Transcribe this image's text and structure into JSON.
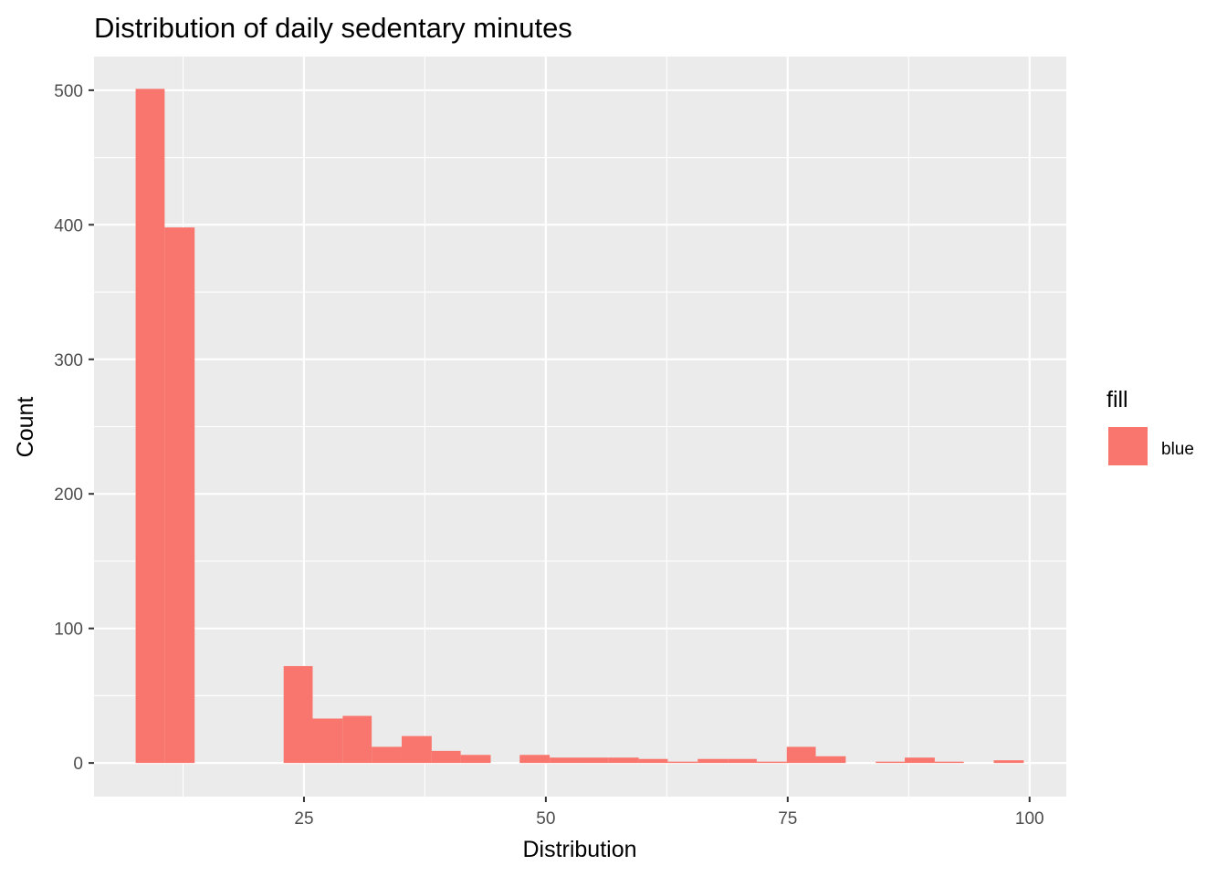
{
  "chart_data": {
    "type": "bar",
    "title": "Distribution of daily sedentary minutes",
    "xlabel": "Distribution",
    "ylabel": "Count",
    "xlim": [
      3.3,
      103.8
    ],
    "ylim": [
      -25,
      525
    ],
    "x_ticks": [
      25,
      50,
      75,
      100
    ],
    "y_ticks": [
      0,
      100,
      200,
      300,
      400,
      500
    ],
    "x_tick_labels": [
      "25",
      "50",
      "75",
      "100"
    ],
    "y_tick_labels": [
      "0",
      "100",
      "200",
      "300",
      "400",
      "500"
    ],
    "grid": true,
    "legend": {
      "title": "fill",
      "position": "right",
      "entries": [
        {
          "label": "blue",
          "color": "#F8766D"
        }
      ]
    },
    "bar_color": "#F8766D",
    "bins": [
      {
        "x0": 7.6,
        "x1": 10.6,
        "count": 501
      },
      {
        "x0": 10.6,
        "x1": 13.7,
        "count": 398
      },
      {
        "x0": 13.7,
        "x1": 16.7,
        "count": 0
      },
      {
        "x0": 16.7,
        "x1": 19.8,
        "count": 0
      },
      {
        "x0": 19.8,
        "x1": 22.9,
        "count": 0
      },
      {
        "x0": 22.9,
        "x1": 25.9,
        "count": 72
      },
      {
        "x0": 25.9,
        "x1": 29.0,
        "count": 33
      },
      {
        "x0": 29.0,
        "x1": 32.0,
        "count": 35
      },
      {
        "x0": 32.0,
        "x1": 35.1,
        "count": 12
      },
      {
        "x0": 35.1,
        "x1": 38.2,
        "count": 20
      },
      {
        "x0": 38.2,
        "x1": 41.2,
        "count": 9
      },
      {
        "x0": 41.2,
        "x1": 44.3,
        "count": 6
      },
      {
        "x0": 44.3,
        "x1": 47.3,
        "count": 0
      },
      {
        "x0": 47.3,
        "x1": 50.4,
        "count": 6
      },
      {
        "x0": 50.4,
        "x1": 53.5,
        "count": 4
      },
      {
        "x0": 53.5,
        "x1": 56.5,
        "count": 4
      },
      {
        "x0": 56.5,
        "x1": 59.6,
        "count": 4
      },
      {
        "x0": 59.6,
        "x1": 62.6,
        "count": 3
      },
      {
        "x0": 62.6,
        "x1": 65.7,
        "count": 1
      },
      {
        "x0": 65.7,
        "x1": 68.8,
        "count": 3
      },
      {
        "x0": 68.8,
        "x1": 71.8,
        "count": 3
      },
      {
        "x0": 71.8,
        "x1": 74.9,
        "count": 1
      },
      {
        "x0": 74.9,
        "x1": 77.9,
        "count": 12
      },
      {
        "x0": 77.9,
        "x1": 81.0,
        "count": 5
      },
      {
        "x0": 81.0,
        "x1": 84.1,
        "count": 0
      },
      {
        "x0": 84.1,
        "x1": 87.1,
        "count": 1
      },
      {
        "x0": 87.1,
        "x1": 90.2,
        "count": 4
      },
      {
        "x0": 90.2,
        "x1": 93.2,
        "count": 1
      },
      {
        "x0": 93.2,
        "x1": 96.3,
        "count": 0
      },
      {
        "x0": 96.3,
        "x1": 99.4,
        "count": 2
      }
    ]
  }
}
